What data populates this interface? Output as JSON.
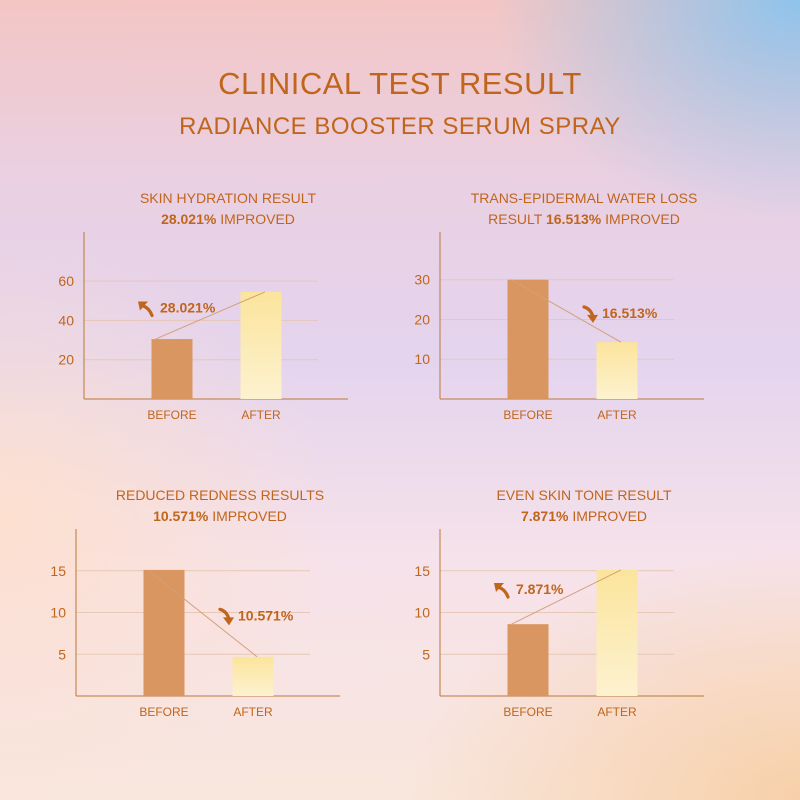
{
  "header": {
    "title": "CLINICAL TEST RESULT",
    "subtitle": "RADIANCE BOOSTER SERUM SPRAY"
  },
  "colors": {
    "accent": "#c0651c",
    "before_bar": "#d99660",
    "after_bar_top": "#fbe49c",
    "after_bar_bottom": "#fdf2d0",
    "axis": "#b8793a"
  },
  "chart_data": [
    {
      "type": "bar",
      "title_line1": "SKIN HYDRATION RESULT",
      "title_line2_pct": "28.021%",
      "title_line2_suffix": " IMPROVED",
      "categories": [
        "BEFORE",
        "AFTER"
      ],
      "values": [
        30.5,
        54.5
      ],
      "yticks": [
        20,
        40,
        60
      ],
      "ylim": [
        0,
        85
      ],
      "annotation": "28.021%",
      "direction": "up"
    },
    {
      "type": "bar",
      "title_line1": "TRANS-EPIDERMAL WATER LOSS",
      "title_line2_prefix": "RESULT ",
      "title_line2_pct": "16.513%",
      "title_line2_suffix": " IMPROVED",
      "categories": [
        "BEFORE",
        "AFTER"
      ],
      "values": [
        30,
        14.3
      ],
      "yticks": [
        10,
        20,
        30
      ],
      "ylim": [
        0,
        42
      ],
      "annotation": "16.513%",
      "direction": "down"
    },
    {
      "type": "bar",
      "title_line1": "REDUCED REDNESS RESULTS",
      "title_line2_pct": "10.571%",
      "title_line2_suffix": " IMPROVED",
      "categories": [
        "BEFORE",
        "AFTER"
      ],
      "values": [
        15.1,
        4.7
      ],
      "yticks": [
        5,
        10,
        15
      ],
      "ylim": [
        0,
        20
      ],
      "annotation": "10.571%",
      "direction": "down"
    },
    {
      "type": "bar",
      "title_line1": "EVEN SKIN TONE RESULT",
      "title_line2_pct": "7.871%",
      "title_line2_suffix": " IMPROVED",
      "categories": [
        "BEFORE",
        "AFTER"
      ],
      "values": [
        8.6,
        15.1
      ],
      "yticks": [
        5,
        10,
        15
      ],
      "ylim": [
        0,
        20
      ],
      "annotation": "7.871%",
      "direction": "up"
    }
  ]
}
